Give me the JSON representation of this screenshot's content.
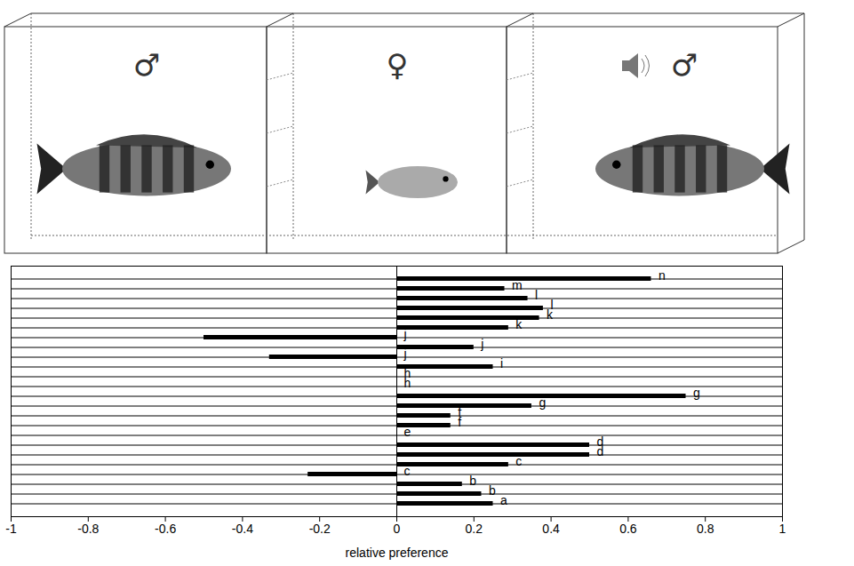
{
  "chart_data": {
    "type": "bar",
    "orientation": "horizontal",
    "annotations": [
      "♂",
      "♀",
      "♂"
    ],
    "x_label": "relative preference",
    "categories": [
      "a",
      "b",
      "b",
      "c",
      "c",
      "d",
      "d",
      "e",
      "f",
      "f",
      "g",
      "g",
      "h",
      "h",
      "i",
      "j",
      "j",
      "j",
      "k",
      "k",
      "l",
      "l",
      "m",
      "n"
    ],
    "values": [
      0.25,
      0.22,
      0.17,
      -0.23,
      0.29,
      0.5,
      0.5,
      0,
      0.14,
      0.14,
      0.35,
      0.75,
      0,
      0,
      0.25,
      -0.33,
      0.2,
      -0.5,
      0.29,
      0.37,
      0.38,
      0.34,
      0.28,
      0.66
    ],
    "color": "#000000",
    "xlim": [
      -1,
      1
    ],
    "xticks": [
      -1,
      -0.8,
      -0.6,
      -0.4,
      -0.2,
      0,
      0.2,
      0.4,
      0.6,
      0.8,
      1
    ],
    "grid": false,
    "tick_labels": "x"
  }
}
